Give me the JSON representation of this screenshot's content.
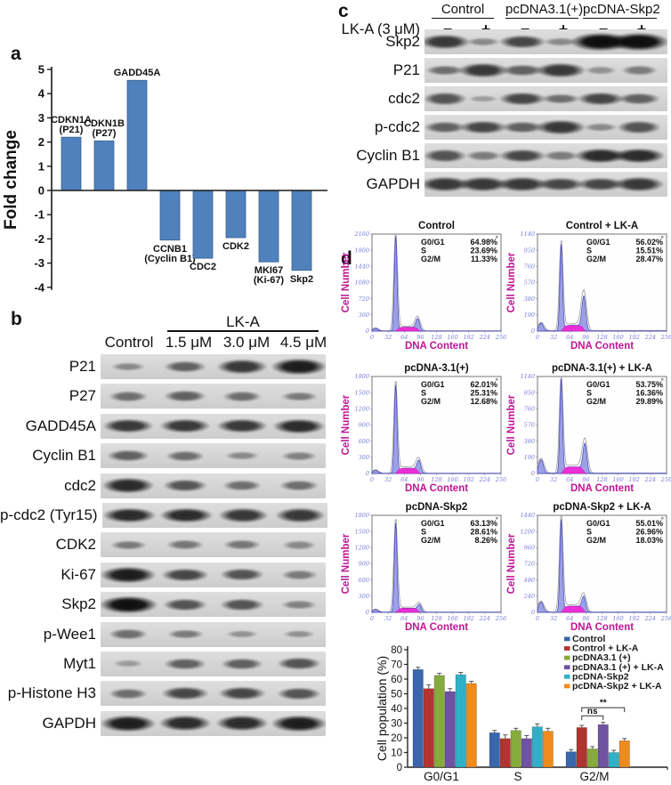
{
  "panels": {
    "a": {
      "label": "a"
    },
    "b": {
      "label": "b",
      "treatment_header": "LK-A",
      "columns": [
        "Control",
        "1.5 μM",
        "3.0 μM",
        "4.5 μM"
      ],
      "rows": [
        {
          "name": "P21",
          "bands": [
            1.5,
            3,
            4.5,
            5.5
          ]
        },
        {
          "name": "P27",
          "bands": [
            2.5,
            3,
            2.5,
            2
          ]
        },
        {
          "name": "GADD45A",
          "bands": [
            4.5,
            4.5,
            4.5,
            5
          ]
        },
        {
          "name": "Cyclin B1",
          "bands": [
            3,
            2.5,
            1.5,
            1.8
          ]
        },
        {
          "name": "cdc2",
          "bands": [
            5,
            3.5,
            2.5,
            2.5
          ]
        },
        {
          "name": "p-cdc2 (Tyr15)",
          "bands": [
            5,
            5,
            4.5,
            4.5
          ]
        },
        {
          "name": "CDK2",
          "bands": [
            2,
            2.2,
            2.2,
            1.5
          ]
        },
        {
          "name": "Ki-67",
          "bands": [
            5.5,
            4,
            3.5,
            2
          ]
        },
        {
          "name": "Skp2",
          "bands": [
            6,
            3.5,
            3.5,
            1.8
          ]
        },
        {
          "name": "p-Wee1",
          "bands": [
            2.5,
            2,
            1.2,
            1.2
          ]
        },
        {
          "name": "Myt1",
          "bands": [
            0.8,
            3,
            3,
            3.5
          ]
        },
        {
          "name": "p-Histone H3",
          "bands": [
            2.5,
            4,
            4,
            3.5
          ]
        },
        {
          "name": "GAPDH",
          "bands": [
            5.5,
            5,
            5,
            5.5
          ]
        }
      ]
    },
    "c": {
      "label": "c",
      "groups": [
        "Control",
        "pcDNA3.1(+)",
        "pcDNA-Skp2"
      ],
      "treatment_label": "LK-A (3 μM)",
      "signs": [
        "−",
        "+",
        "−",
        "+",
        "−",
        "+"
      ],
      "rows": [
        {
          "name": "Skp2",
          "bands": [
            4.5,
            1.5,
            4,
            1.5,
            6.5,
            6.5
          ]
        },
        {
          "name": "P21",
          "bands": [
            2.5,
            4.5,
            3,
            4.5,
            1.2,
            2
          ]
        },
        {
          "name": "cdc2",
          "bands": [
            3.5,
            0.8,
            4,
            2.5,
            4,
            3
          ]
        },
        {
          "name": "p-cdc2",
          "bands": [
            3,
            4,
            3,
            4.5,
            1.5,
            3.5
          ]
        },
        {
          "name": "Cyclin B1",
          "bands": [
            3.5,
            2,
            4,
            2,
            5,
            5
          ]
        },
        {
          "name": "GAPDH",
          "bands": [
            4.5,
            4.5,
            4.5,
            4,
            4,
            4.5
          ]
        }
      ]
    },
    "d": {
      "label": "d"
    }
  },
  "chart_data": [
    {
      "id": "fold-change",
      "type": "bar",
      "title": "",
      "ylabel": "Fold change",
      "ylim": [
        -4,
        5
      ],
      "yticks": [
        -4,
        -3,
        -2,
        -1,
        0,
        1,
        2,
        3,
        4,
        5
      ],
      "categories": [
        "CDKN1A (P21)",
        "CDKN1B (P27)",
        "GADD45A",
        "CCNB1 (Cyclin B1)",
        "CDC2",
        "CDK2",
        "MKI67 (Ki-67)",
        "Skp2"
      ],
      "label_lines": [
        [
          "CDKN1A",
          "(P21)"
        ],
        [
          "CDKN1B",
          "(P27)"
        ],
        [
          "GADD45A"
        ],
        [
          "CCNB1",
          "(Cyclin B1)"
        ],
        [
          "CDC2"
        ],
        [
          "CDK2"
        ],
        [
          "MKI67",
          "(Ki-67)"
        ],
        [
          "Skp2"
        ]
      ],
      "values": [
        2.2,
        2.05,
        4.55,
        -2.05,
        -2.8,
        -1.95,
        -2.95,
        -3.3
      ],
      "bar_color": "#4f81bd"
    },
    {
      "id": "flow-control",
      "type": "area",
      "title": "Control",
      "xlabel": "DNA Content",
      "ylabel": "Cell Number",
      "xticks": [
        0,
        32,
        64,
        96,
        128,
        160,
        192,
        224,
        256
      ],
      "yticks": [
        360,
        720,
        1080,
        1440,
        1800,
        2160
      ],
      "ylim": [
        0,
        2160
      ],
      "stats": [
        [
          "G0/G1",
          "64.98%"
        ],
        [
          "S",
          "23.69%"
        ],
        [
          "G2/M",
          "11.33%"
        ]
      ],
      "curve": {
        "debris": 60,
        "g1_x": 47,
        "g1_h": 2100,
        "s_h": 85,
        "g2_x": 91,
        "g2_h": 250
      }
    },
    {
      "id": "flow-control-lka",
      "type": "area",
      "title": "Control + LK-A",
      "xlabel": "DNA Content",
      "ylabel": "Cell Number",
      "xticks": [
        0,
        32,
        64,
        96,
        128,
        160,
        192,
        224,
        256
      ],
      "yticks": [
        190,
        380,
        570,
        760,
        950,
        1140
      ],
      "ylim": [
        0,
        1140
      ],
      "stats": [
        [
          "G0/G1",
          "56.02%"
        ],
        [
          "S",
          "15.51%"
        ],
        [
          "G2/M",
          "28.47%"
        ]
      ],
      "curve": {
        "debris": 90,
        "g1_x": 47,
        "g1_h": 1010,
        "s_h": 65,
        "g2_x": 92,
        "g2_h": 395
      }
    },
    {
      "id": "flow-pcdna31",
      "type": "area",
      "title": "pcDNA-3.1(+)",
      "xlabel": "DNA Content",
      "ylabel": "Cell Number",
      "xticks": [
        0,
        32,
        64,
        96,
        128,
        160,
        192,
        224,
        256
      ],
      "yticks": [
        300,
        600,
        900,
        1200,
        1500,
        1800
      ],
      "ylim": [
        0,
        1800
      ],
      "stats": [
        [
          "G0/G1",
          "62.01%"
        ],
        [
          "S",
          "25.31%"
        ],
        [
          "G2/M",
          "12.68%"
        ]
      ],
      "curve": {
        "debris": 60,
        "g1_x": 47,
        "g1_h": 1630,
        "s_h": 95,
        "g2_x": 93,
        "g2_h": 230
      }
    },
    {
      "id": "flow-pcdna31-lka",
      "type": "area",
      "title": "pcDNA-3.1(+) + LK-A",
      "xlabel": "DNA Content",
      "ylabel": "Cell Number",
      "xticks": [
        0,
        32,
        64,
        96,
        128,
        160,
        192,
        224,
        256
      ],
      "yticks": [
        190,
        380,
        570,
        760,
        950,
        1140
      ],
      "ylim": [
        0,
        1140
      ],
      "stats": [
        [
          "G0/G1",
          "53.75%"
        ],
        [
          "S",
          "16.36%"
        ],
        [
          "G2/M",
          "29.89%"
        ]
      ],
      "curve": {
        "debris": 160,
        "g1_x": 47,
        "g1_h": 1100,
        "s_h": 75,
        "g2_x": 94,
        "g2_h": 345
      }
    },
    {
      "id": "flow-pcdna-skp2",
      "type": "area",
      "title": "pcDNA-Skp2",
      "xlabel": "DNA Content",
      "ylabel": "Cell Number",
      "xticks": [
        0,
        32,
        64,
        96,
        128,
        160,
        192,
        224,
        256
      ],
      "yticks": [
        300,
        600,
        900,
        1200,
        1500,
        1800
      ],
      "ylim": [
        0,
        1800
      ],
      "stats": [
        [
          "G0/G1",
          "63.13%"
        ],
        [
          "S",
          "28.61%"
        ],
        [
          "G2/M",
          "8.26%"
        ]
      ],
      "curve": {
        "debris": 50,
        "g1_x": 47,
        "g1_h": 1650,
        "s_h": 75,
        "g2_x": 94,
        "g2_h": 140
      }
    },
    {
      "id": "flow-pcdna-skp2-lka",
      "type": "area",
      "title": "pcDNA-Skp2 + LK-A",
      "xlabel": "DNA Content",
      "ylabel": "Cell Number",
      "xticks": [
        0,
        32,
        64,
        96,
        128,
        160,
        192,
        224,
        256
      ],
      "yticks": [
        240,
        480,
        720,
        960,
        1200,
        1440
      ],
      "ylim": [
        0,
        1440
      ],
      "stats": [
        [
          "G0/G1",
          "55.01%"
        ],
        [
          "S",
          "26.96%"
        ],
        [
          "G2/M",
          "18.03%"
        ]
      ],
      "curve": {
        "debris": 150,
        "g1_x": 47,
        "g1_h": 1370,
        "s_h": 90,
        "g2_x": 92,
        "g2_h": 215
      }
    },
    {
      "id": "cell-population",
      "type": "bar",
      "categories": [
        "G0/G1",
        "S",
        "G2/M"
      ],
      "series": [
        {
          "name": "Control",
          "color": "#3a66ad",
          "values": [
            66.5,
            23.5,
            10.5
          ],
          "errors": [
            1.5,
            1.5,
            1.5
          ]
        },
        {
          "name": "Control + LK-A",
          "color": "#b23430",
          "values": [
            53.5,
            19.5,
            27
          ],
          "errors": [
            2.5,
            2.5,
            1.5
          ]
        },
        {
          "name": "pcDNA3.1 (+)",
          "color": "#85ab3c",
          "values": [
            62.5,
            25,
            12.5
          ],
          "errors": [
            1.5,
            1.5,
            1.5
          ]
        },
        {
          "name": "pcDNA3.1 (+) + LK-A",
          "color": "#6f52a1",
          "values": [
            51.5,
            19.5,
            29
          ],
          "errors": [
            2,
            2,
            1.5
          ]
        },
        {
          "name": "pcDNA-Skp2",
          "color": "#30b0c7",
          "values": [
            63,
            27.5,
            10
          ],
          "errors": [
            1.5,
            2,
            1.5
          ]
        },
        {
          "name": "pcDNA-Skp2 + LK-A",
          "color": "#ef8b1d",
          "values": [
            57,
            24.5,
            18
          ],
          "errors": [
            1.5,
            2,
            1.5
          ]
        }
      ],
      "ylabel": "Cell population (%)",
      "ylim": [
        0,
        80
      ],
      "yticks": [
        0,
        10,
        20,
        30,
        40,
        50,
        60,
        70,
        80
      ],
      "legend_position": "upper right",
      "annotations": [
        {
          "label": "ns",
          "group": 2,
          "from_series": 1,
          "to_series": 3,
          "y": 35
        },
        {
          "label": "**",
          "group": 2,
          "from_series": 1,
          "to_series": 5,
          "y": 40.5
        }
      ]
    }
  ]
}
